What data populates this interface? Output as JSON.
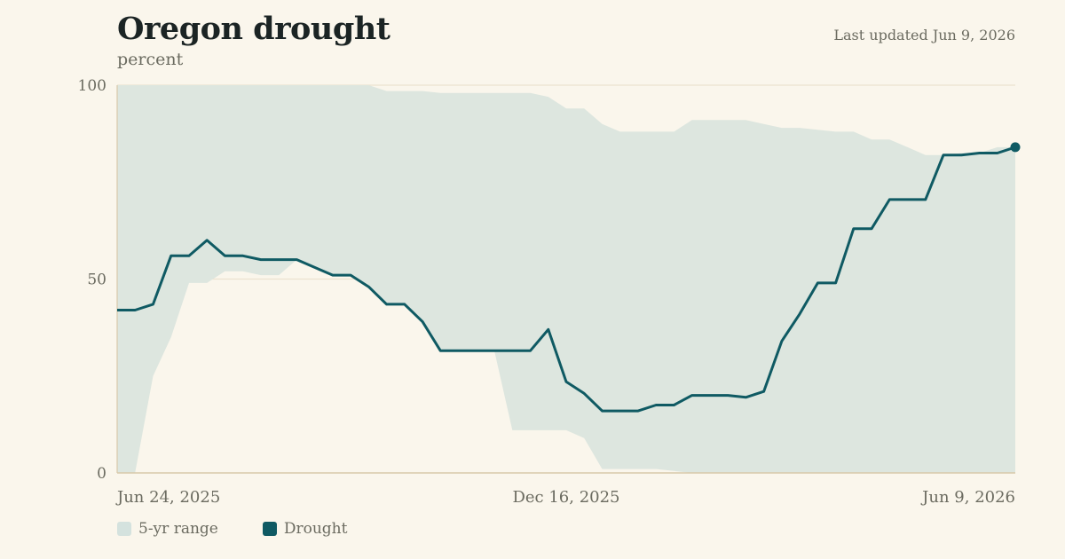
{
  "header": {
    "title": "Oregon drought",
    "subtitle": "percent",
    "updated": "Last updated Jun 9, 2026"
  },
  "legend": {
    "range_label": "5-yr range",
    "series_label": "Drought"
  },
  "colors": {
    "background": "#faf6ec",
    "range_fill": "#dde6df",
    "line": "#0f5a63",
    "axis": "#d8c9aa",
    "grid": "#ece2cf",
    "text": "#6b6b60"
  },
  "chart_data": {
    "type": "line",
    "title": "Oregon drought",
    "ylabel": "percent",
    "ylim": [
      0,
      100
    ],
    "y_ticks": [
      "0",
      "50",
      "100"
    ],
    "x_ticks": [
      "Jun 24, 2025",
      "Dec 16, 2025",
      "Jun 9, 2026"
    ],
    "grid": true,
    "x_start": "2025-06-24",
    "x_end": "2026-06-09",
    "series": [
      {
        "name": "Drought",
        "values": [
          42,
          42,
          43.5,
          56,
          56,
          60,
          56,
          56,
          55,
          55,
          55,
          53,
          51,
          51,
          48,
          43.5,
          43.5,
          39,
          31.5,
          31.5,
          31.5,
          31.5,
          31.5,
          31.5,
          37,
          23.5,
          20.5,
          16,
          16,
          16,
          17.5,
          17.5,
          20,
          20,
          20,
          19.5,
          21,
          34,
          41,
          49,
          49,
          63,
          63,
          70.5,
          70.5,
          70.5,
          82,
          82,
          82.5,
          82.5,
          84
        ]
      },
      {
        "name": "5-yr range",
        "max": [
          100,
          100,
          100,
          100,
          100,
          100,
          100,
          100,
          100,
          100,
          100,
          100,
          100,
          100,
          100,
          98.5,
          98.5,
          98.5,
          98,
          98,
          98,
          98,
          98,
          98,
          97,
          94,
          94,
          90,
          88,
          88,
          88,
          88,
          91,
          91,
          91,
          91,
          90,
          89,
          89,
          88.5,
          88,
          88,
          86,
          86,
          84,
          82,
          82,
          82.5,
          82.5,
          84,
          84
        ],
        "min": [
          0,
          0,
          25,
          35,
          49,
          49,
          52,
          52,
          51,
          51,
          55,
          53,
          51,
          51,
          48,
          43.5,
          43.5,
          39,
          31.5,
          31.5,
          31.5,
          31.5,
          11,
          11,
          11,
          11,
          9,
          1,
          1,
          1,
          1,
          0.5,
          0,
          0,
          0,
          0,
          0,
          0,
          0,
          0,
          0,
          0,
          0,
          0,
          0,
          0,
          0,
          0,
          0,
          0,
          0
        ]
      }
    ]
  }
}
